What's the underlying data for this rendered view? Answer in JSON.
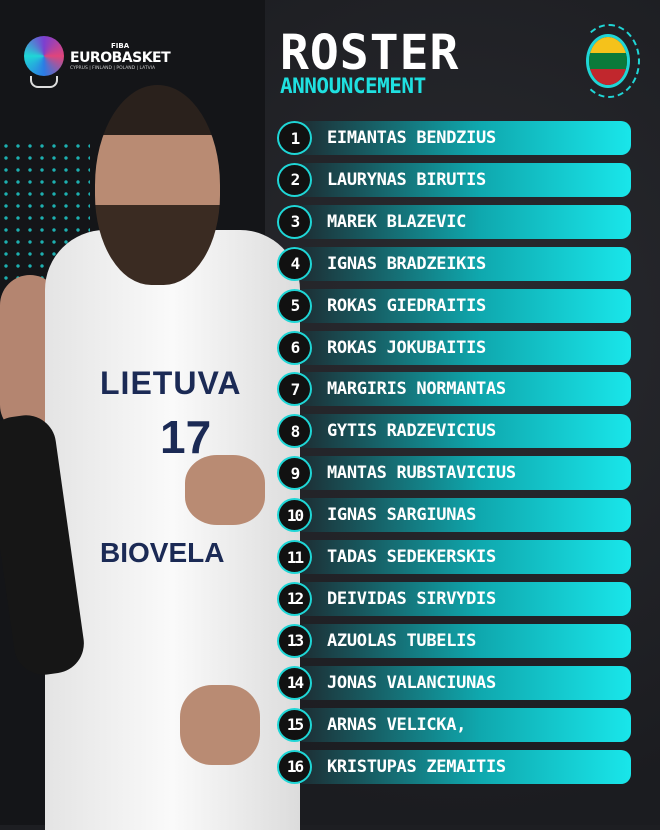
{
  "logo": {
    "fiba": "FIBA",
    "name": "EUROBASKET",
    "hosts": "CYPRUS | FINLAND | POLAND | LATVIA"
  },
  "title": "ROSTER",
  "subtitle": "ANNOUNCEMENT",
  "flag": {
    "colors": [
      "#f5c21b",
      "#0a7a3a",
      "#c1272d"
    ]
  },
  "jersey": {
    "country": "LIETUVA",
    "number": "17",
    "sponsor": "BIOVELA"
  },
  "accent": "#1fd6d6",
  "roster": [
    {
      "no": "1",
      "name": "Eimantas Bendzius"
    },
    {
      "no": "2",
      "name": "Laurynas Birutis"
    },
    {
      "no": "3",
      "name": "Marek Blazevic"
    },
    {
      "no": "4",
      "name": "Ignas Bradzeikis"
    },
    {
      "no": "5",
      "name": "Rokas Giedraitis"
    },
    {
      "no": "6",
      "name": "Rokas Jokubaitis"
    },
    {
      "no": "7",
      "name": "Margiris Normantas"
    },
    {
      "no": "8",
      "name": "Gytis Radzevicius"
    },
    {
      "no": "9",
      "name": "Mantas Rubstavicius"
    },
    {
      "no": "10",
      "name": "Ignas Sargiunas"
    },
    {
      "no": "11",
      "name": "Tadas Sedekerskis"
    },
    {
      "no": "12",
      "name": "Deividas Sirvydis"
    },
    {
      "no": "13",
      "name": "Azuolas Tubelis"
    },
    {
      "no": "14",
      "name": "Jonas Valanciunas"
    },
    {
      "no": "15",
      "name": "Arnas Velicka,"
    },
    {
      "no": "16",
      "name": "Kristupas Zemaitis"
    }
  ]
}
